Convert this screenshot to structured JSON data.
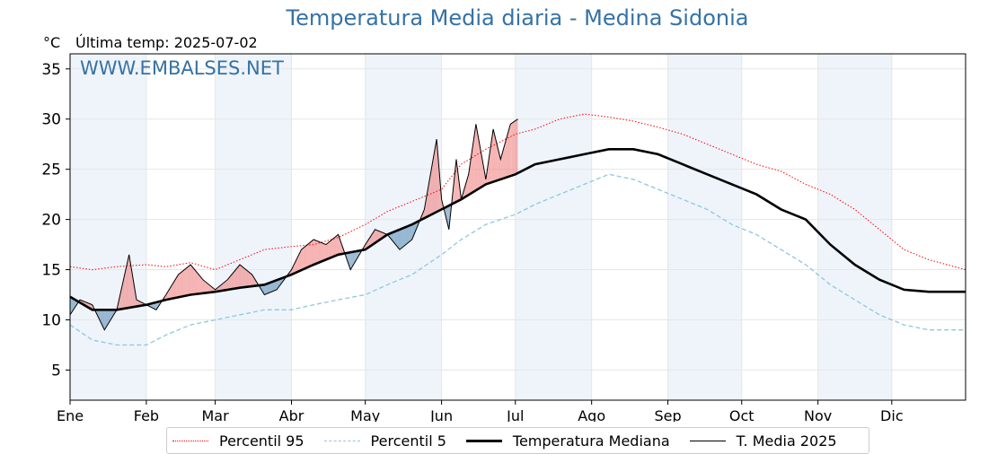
{
  "title": "Temperatura Media diaria - Medina Sidonia",
  "unit_label": "°C",
  "last_temp_label": "Última temp: 2025-07-02",
  "watermark": "WWW.EMBALSES.NET",
  "colors": {
    "p95": "#ff0000",
    "p5": "#8fc7dc",
    "median": "#000000",
    "year": "#000000",
    "above_fill": "#f08080",
    "below_fill": "#5b8db8",
    "month_band": "#eef4fa",
    "title": "#3572a5"
  },
  "chart_data": {
    "type": "line",
    "title": "Temperatura Media diaria - Medina Sidonia",
    "ylabel": "°C",
    "xlim": [
      1,
      365
    ],
    "ylim": [
      2,
      36.5
    ],
    "yticks": [
      5,
      10,
      15,
      20,
      25,
      30,
      35
    ],
    "month_labels": [
      "Ene",
      "Feb",
      "Mar",
      "Abr",
      "May",
      "Jun",
      "Jul",
      "Ago",
      "Sep",
      "Oct",
      "Nov",
      "Dic"
    ],
    "month_start_days": [
      1,
      32,
      60,
      91,
      121,
      152,
      182,
      213,
      244,
      274,
      305,
      335
    ],
    "grid": true,
    "legend_position": "bottom",
    "series": [
      {
        "name": "Percentil 95",
        "style": "dotted",
        "x": [
          1,
          10,
          20,
          32,
          40,
          50,
          60,
          70,
          80,
          91,
          100,
          110,
          121,
          130,
          140,
          152,
          160,
          170,
          182,
          190,
          200,
          210,
          220,
          230,
          240,
          250,
          260,
          270,
          280,
          290,
          300,
          310,
          320,
          330,
          340,
          350,
          365
        ],
        "values": [
          15.3,
          15.0,
          15.3,
          15.5,
          15.3,
          15.7,
          15.0,
          16.0,
          17.0,
          17.3,
          17.5,
          18.2,
          19.5,
          20.8,
          21.8,
          23.0,
          25.5,
          27.0,
          28.5,
          29.0,
          30.0,
          30.5,
          30.2,
          29.8,
          29.2,
          28.5,
          27.5,
          26.5,
          25.5,
          24.8,
          23.5,
          22.5,
          21.0,
          19.0,
          17.0,
          16.0,
          15.0
        ]
      },
      {
        "name": "Percentil 5",
        "style": "dashed",
        "x": [
          1,
          10,
          20,
          32,
          40,
          50,
          60,
          70,
          80,
          91,
          100,
          110,
          121,
          130,
          140,
          152,
          160,
          170,
          182,
          190,
          200,
          210,
          220,
          230,
          240,
          250,
          260,
          270,
          280,
          290,
          300,
          310,
          320,
          330,
          340,
          350,
          365
        ],
        "values": [
          9.5,
          8.0,
          7.5,
          7.5,
          8.5,
          9.5,
          10.0,
          10.5,
          11.0,
          11.0,
          11.5,
          12.0,
          12.5,
          13.5,
          14.5,
          16.5,
          18.0,
          19.5,
          20.5,
          21.5,
          22.5,
          23.5,
          24.5,
          24.0,
          23.0,
          22.0,
          21.0,
          19.5,
          18.5,
          17.0,
          15.5,
          13.5,
          12.0,
          10.5,
          9.5,
          9.0,
          9.0
        ]
      },
      {
        "name": "Temperatura Mediana",
        "style": "solid-thick",
        "x": [
          1,
          10,
          20,
          32,
          40,
          50,
          60,
          70,
          80,
          91,
          100,
          110,
          121,
          130,
          140,
          152,
          160,
          170,
          182,
          190,
          200,
          210,
          220,
          230,
          240,
          250,
          260,
          270,
          280,
          290,
          300,
          310,
          320,
          330,
          340,
          350,
          365
        ],
        "values": [
          12.3,
          11.0,
          11.0,
          11.5,
          12.0,
          12.5,
          12.8,
          13.2,
          13.5,
          14.5,
          15.5,
          16.5,
          17.0,
          18.5,
          19.5,
          21.0,
          22.0,
          23.5,
          24.5,
          25.5,
          26.0,
          26.5,
          27.0,
          27.0,
          26.5,
          25.5,
          24.5,
          23.5,
          22.5,
          21.0,
          20.0,
          17.5,
          15.5,
          14.0,
          13.0,
          12.8,
          12.8
        ]
      },
      {
        "name": "T. Media 2025",
        "style": "solid-thin",
        "x": [
          1,
          5,
          10,
          15,
          20,
          25,
          28,
          32,
          36,
          40,
          45,
          50,
          55,
          60,
          65,
          70,
          75,
          80,
          85,
          91,
          95,
          100,
          105,
          110,
          115,
          121,
          125,
          130,
          135,
          140,
          145,
          150,
          152,
          155,
          158,
          160,
          163,
          166,
          170,
          173,
          176,
          180,
          183
        ],
        "values": [
          10.5,
          12.0,
          11.5,
          9.0,
          11.0,
          16.5,
          12.0,
          11.5,
          11.0,
          12.5,
          14.5,
          15.5,
          14.0,
          13.0,
          14.0,
          15.5,
          14.5,
          12.5,
          13.0,
          15.0,
          17.0,
          18.0,
          17.5,
          18.5,
          15.0,
          17.5,
          19.0,
          18.5,
          17.0,
          18.0,
          21.0,
          28.0,
          22.0,
          19.0,
          26.0,
          22.0,
          24.5,
          29.5,
          24.0,
          29.0,
          26.0,
          29.5,
          30.0
        ]
      }
    ]
  },
  "legend": [
    {
      "label": "Percentil 95"
    },
    {
      "label": "Percentil 5"
    },
    {
      "label": "Temperatura Mediana"
    },
    {
      "label": "T. Media 2025"
    }
  ]
}
